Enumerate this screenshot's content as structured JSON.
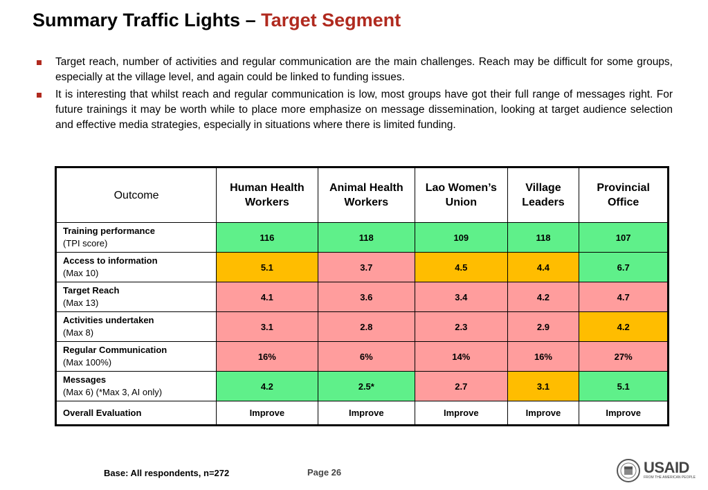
{
  "title": {
    "main": "Summary Traffic Lights – ",
    "accent": "Target Segment"
  },
  "bullets": [
    "Target reach, number of activities and regular communication are the main challenges. Reach may be difficult for some groups, especially at the village level, and again could be linked to funding issues.",
    "It is interesting that whilst reach and regular communication is low, most groups have got their full range of messages right. For future trainings it may be worth while to place more emphasize on message dissemination, looking at target audience selection and effective media strategies, especially in situations where there is limited funding."
  ],
  "table": {
    "headers": [
      "Outcome",
      "Human Health Workers",
      "Animal Health Workers",
      "Lao Women’s Union",
      "Village Leaders",
      "Provincial Office"
    ],
    "rows": [
      {
        "label": "Training performance",
        "sub": "(TPI score)",
        "cells": [
          {
            "value": "116",
            "status": "green"
          },
          {
            "value": "118",
            "status": "green"
          },
          {
            "value": "109",
            "status": "green"
          },
          {
            "value": "118",
            "status": "green"
          },
          {
            "value": "107",
            "status": "green"
          }
        ]
      },
      {
        "label": "Access to information",
        "sub": "(Max 10)",
        "cells": [
          {
            "value": "5.1",
            "status": "amber"
          },
          {
            "value": "3.7",
            "status": "red"
          },
          {
            "value": "4.5",
            "status": "amber"
          },
          {
            "value": "4.4",
            "status": "amber"
          },
          {
            "value": "6.7",
            "status": "green"
          }
        ]
      },
      {
        "label": "Target Reach",
        "sub": "(Max 13)",
        "cells": [
          {
            "value": "4.1",
            "status": "red"
          },
          {
            "value": "3.6",
            "status": "red"
          },
          {
            "value": "3.4",
            "status": "red"
          },
          {
            "value": "4.2",
            "status": "red"
          },
          {
            "value": "4.7",
            "status": "red"
          }
        ]
      },
      {
        "label": "Activities undertaken",
        "sub": "(Max 8)",
        "cells": [
          {
            "value": "3.1",
            "status": "red"
          },
          {
            "value": "2.8",
            "status": "red"
          },
          {
            "value": "2.3",
            "status": "red"
          },
          {
            "value": "2.9",
            "status": "red"
          },
          {
            "value": "4.2",
            "status": "amber"
          }
        ]
      },
      {
        "label": "Regular Communication",
        "sub": "(Max 100%)",
        "cells": [
          {
            "value": "16%",
            "status": "red"
          },
          {
            "value": "6%",
            "status": "red"
          },
          {
            "value": "14%",
            "status": "red"
          },
          {
            "value": "16%",
            "status": "red"
          },
          {
            "value": "27%",
            "status": "red"
          }
        ]
      },
      {
        "label": "Messages",
        "sub": "(Max 6) (*Max 3, AI only)",
        "cells": [
          {
            "value": "4.2",
            "status": "green"
          },
          {
            "value": "2.5*",
            "status": "green"
          },
          {
            "value": "2.7",
            "status": "red"
          },
          {
            "value": "3.1",
            "status": "amber"
          },
          {
            "value": "5.1",
            "status": "green"
          }
        ]
      }
    ],
    "overall": {
      "label": "Overall Evaluation",
      "cells": [
        "Improve",
        "Improve",
        "Improve",
        "Improve",
        "Improve"
      ]
    }
  },
  "footer": {
    "base": "Base: All respondents, n=272",
    "page": "Page 26"
  },
  "logo": {
    "name": "USAID",
    "tagline": "FROM THE AMERICAN PEOPLE"
  },
  "colors": {
    "accent": "#b02a1f",
    "green": "#5ff08a",
    "amber": "#ffbd00",
    "red": "#ff9d9d"
  }
}
